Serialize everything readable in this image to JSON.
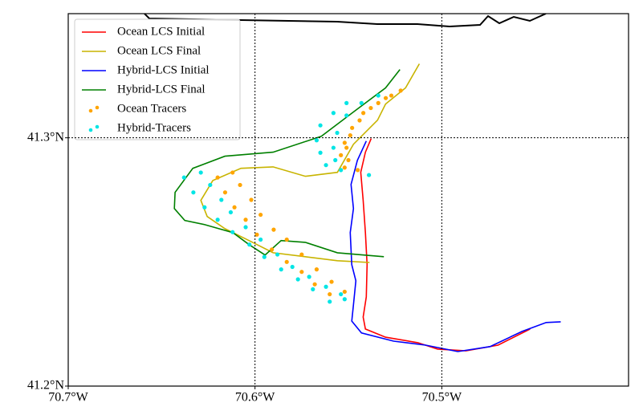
{
  "chart_data": {
    "type": "line",
    "xlim": [
      -70.7,
      -70.4
    ],
    "ylim": [
      41.2,
      41.35
    ],
    "xticks": [
      {
        "value": -70.7,
        "label": "70.7°W"
      },
      {
        "value": -70.6,
        "label": "70.6°W"
      },
      {
        "value": -70.5,
        "label": "70.5°W"
      }
    ],
    "yticks": [
      {
        "value": 41.2,
        "label": "41.2°N"
      },
      {
        "value": 41.3,
        "label": "41.3°N"
      }
    ],
    "grid": true,
    "legend": "upper left",
    "series": [
      {
        "name": "Ocean LCS Initial",
        "type": "line",
        "color": "#ff0000",
        "x": [
          -70.5378,
          -70.5409,
          -70.5434,
          -70.5421,
          -70.5409,
          -70.54,
          -70.5404,
          -70.5421,
          -70.5409,
          -70.5301,
          -70.5129,
          -70.5022,
          -70.4871,
          -70.4699,
          -70.4527
        ],
        "values": [
          41.2997,
          41.2942,
          41.2861,
          41.2748,
          41.2618,
          41.2489,
          41.2359,
          41.2278,
          41.223,
          41.2197,
          41.2175,
          41.2149,
          41.2142,
          41.2165,
          41.223
        ]
      },
      {
        "name": "Ocean LCS Final",
        "type": "line",
        "color": "#c8b400",
        "x": [
          -70.512,
          -70.5194,
          -70.5301,
          -70.5344,
          -70.5473,
          -70.5559,
          -70.5731,
          -70.5903,
          -70.6075,
          -70.6226,
          -70.629,
          -70.6256,
          -70.6161,
          -70.6032,
          -70.5903,
          -70.5731,
          -70.5559,
          -70.5387
        ],
        "values": [
          41.3298,
          41.3201,
          41.3136,
          41.3071,
          41.2974,
          41.2861,
          41.2845,
          41.2883,
          41.2877,
          41.2828,
          41.2748,
          41.2683,
          41.2634,
          41.2586,
          41.2537,
          41.2521,
          41.2505,
          41.2498
        ]
      },
      {
        "name": "Hybrid-LCS Initial",
        "type": "line",
        "color": "#0000ff",
        "x": [
          -70.5404,
          -70.5452,
          -70.5486,
          -70.5473,
          -70.549,
          -70.5482,
          -70.546,
          -70.5473,
          -70.5482,
          -70.543,
          -70.5258,
          -70.5086,
          -70.4914,
          -70.4742,
          -70.457,
          -70.4441,
          -70.4363
        ],
        "values": [
          41.2987,
          41.2909,
          41.2812,
          41.2715,
          41.2618,
          41.2489,
          41.2424,
          41.2327,
          41.2262,
          41.2214,
          41.2181,
          41.2165,
          41.2139,
          41.2159,
          41.222,
          41.2256,
          41.2259
        ]
      },
      {
        "name": "Hybrid-LCS Final",
        "type": "line",
        "color": "#008000",
        "x": [
          -70.5224,
          -70.5301,
          -70.5473,
          -70.5645,
          -70.5903,
          -70.6161,
          -70.6333,
          -70.6428,
          -70.6432,
          -70.6376,
          -70.6269,
          -70.6118,
          -70.6032,
          -70.5946,
          -70.586,
          -70.5731,
          -70.5559,
          -70.531
        ],
        "values": [
          41.3275,
          41.3201,
          41.3104,
          41.3006,
          41.2942,
          41.2926,
          41.2877,
          41.278,
          41.2715,
          41.2667,
          41.265,
          41.2618,
          41.257,
          41.2528,
          41.2586,
          41.2579,
          41.2537,
          41.2521
        ]
      },
      {
        "name": "Ocean Tracers",
        "type": "scatter",
        "color": "#ffa500",
        "x": [
          -70.62,
          -70.616,
          -70.611,
          -70.605,
          -70.599,
          -70.591,
          -70.583,
          -70.575,
          -70.568,
          -70.56,
          -70.612,
          -70.608,
          -70.602,
          -70.597,
          -70.59,
          -70.583,
          -70.575,
          -70.567,
          -70.559,
          -70.552,
          -70.522,
          -70.53,
          -70.538,
          -70.544,
          -70.549,
          -70.551,
          -70.55,
          -70.545,
          -70.527,
          -70.534,
          -70.542,
          -70.548,
          -70.552,
          -70.554,
          -70.552
        ],
        "values": [
          41.284,
          41.278,
          41.272,
          41.267,
          41.261,
          41.255,
          41.25,
          41.246,
          41.241,
          41.237,
          41.286,
          41.281,
          41.275,
          41.269,
          41.263,
          41.259,
          41.253,
          41.247,
          41.242,
          41.238,
          41.319,
          41.316,
          41.312,
          41.307,
          41.301,
          41.296,
          41.291,
          41.287,
          41.317,
          41.314,
          41.31,
          41.304,
          41.298,
          41.293,
          41.288
        ]
      },
      {
        "name": "Hybrid-Tracers",
        "type": "scatter",
        "color": "#00e5e5",
        "x": [
          -70.638,
          -70.633,
          -70.627,
          -70.62,
          -70.612,
          -70.603,
          -70.595,
          -70.586,
          -70.577,
          -70.569,
          -70.56,
          -70.552,
          -70.629,
          -70.624,
          -70.618,
          -70.613,
          -70.605,
          -70.597,
          -70.588,
          -70.58,
          -70.571,
          -70.562,
          -70.554,
          -70.551,
          -70.558,
          -70.565,
          -70.567,
          -70.565,
          -70.562,
          -70.534,
          -70.543,
          -70.551,
          -70.556,
          -70.558,
          -70.557,
          -70.554,
          -70.539
        ],
        "values": [
          41.284,
          41.278,
          41.272,
          41.267,
          41.262,
          41.257,
          41.252,
          41.247,
          41.243,
          41.239,
          41.234,
          41.235,
          41.286,
          41.281,
          41.275,
          41.27,
          41.264,
          41.259,
          41.253,
          41.248,
          41.244,
          41.24,
          41.237,
          41.314,
          41.31,
          41.305,
          41.299,
          41.294,
          41.289,
          41.317,
          41.314,
          41.309,
          41.302,
          41.296,
          41.291,
          41.287,
          41.285
        ]
      }
    ]
  }
}
